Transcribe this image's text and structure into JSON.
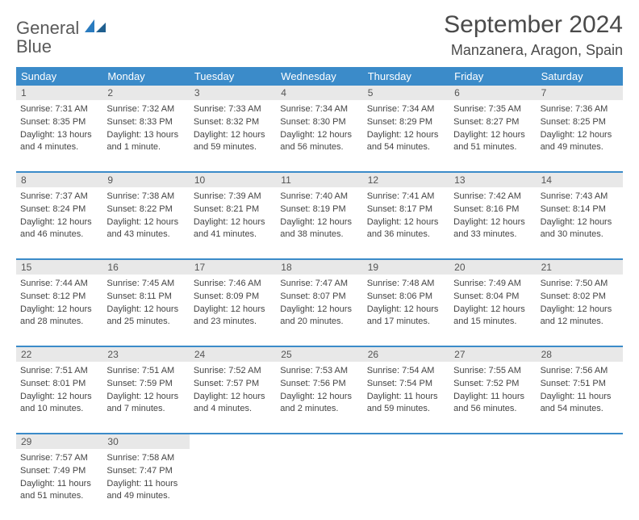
{
  "logo": {
    "text1": "General",
    "text2": "Blue"
  },
  "title": "September 2024",
  "location": "Manzanera, Aragon, Spain",
  "day_names": [
    "Sunday",
    "Monday",
    "Tuesday",
    "Wednesday",
    "Thursday",
    "Friday",
    "Saturday"
  ],
  "colors": {
    "header_bg": "#3b8bc9",
    "daynum_bg": "#e8e8e8",
    "border": "#3b8bc9",
    "text": "#444444"
  },
  "weeks": [
    [
      {
        "n": "1",
        "sr": "7:31 AM",
        "ss": "8:35 PM",
        "dl": "13 hours and 4 minutes."
      },
      {
        "n": "2",
        "sr": "7:32 AM",
        "ss": "8:33 PM",
        "dl": "13 hours and 1 minute."
      },
      {
        "n": "3",
        "sr": "7:33 AM",
        "ss": "8:32 PM",
        "dl": "12 hours and 59 minutes."
      },
      {
        "n": "4",
        "sr": "7:34 AM",
        "ss": "8:30 PM",
        "dl": "12 hours and 56 minutes."
      },
      {
        "n": "5",
        "sr": "7:34 AM",
        "ss": "8:29 PM",
        "dl": "12 hours and 54 minutes."
      },
      {
        "n": "6",
        "sr": "7:35 AM",
        "ss": "8:27 PM",
        "dl": "12 hours and 51 minutes."
      },
      {
        "n": "7",
        "sr": "7:36 AM",
        "ss": "8:25 PM",
        "dl": "12 hours and 49 minutes."
      }
    ],
    [
      {
        "n": "8",
        "sr": "7:37 AM",
        "ss": "8:24 PM",
        "dl": "12 hours and 46 minutes."
      },
      {
        "n": "9",
        "sr": "7:38 AM",
        "ss": "8:22 PM",
        "dl": "12 hours and 43 minutes."
      },
      {
        "n": "10",
        "sr": "7:39 AM",
        "ss": "8:21 PM",
        "dl": "12 hours and 41 minutes."
      },
      {
        "n": "11",
        "sr": "7:40 AM",
        "ss": "8:19 PM",
        "dl": "12 hours and 38 minutes."
      },
      {
        "n": "12",
        "sr": "7:41 AM",
        "ss": "8:17 PM",
        "dl": "12 hours and 36 minutes."
      },
      {
        "n": "13",
        "sr": "7:42 AM",
        "ss": "8:16 PM",
        "dl": "12 hours and 33 minutes."
      },
      {
        "n": "14",
        "sr": "7:43 AM",
        "ss": "8:14 PM",
        "dl": "12 hours and 30 minutes."
      }
    ],
    [
      {
        "n": "15",
        "sr": "7:44 AM",
        "ss": "8:12 PM",
        "dl": "12 hours and 28 minutes."
      },
      {
        "n": "16",
        "sr": "7:45 AM",
        "ss": "8:11 PM",
        "dl": "12 hours and 25 minutes."
      },
      {
        "n": "17",
        "sr": "7:46 AM",
        "ss": "8:09 PM",
        "dl": "12 hours and 23 minutes."
      },
      {
        "n": "18",
        "sr": "7:47 AM",
        "ss": "8:07 PM",
        "dl": "12 hours and 20 minutes."
      },
      {
        "n": "19",
        "sr": "7:48 AM",
        "ss": "8:06 PM",
        "dl": "12 hours and 17 minutes."
      },
      {
        "n": "20",
        "sr": "7:49 AM",
        "ss": "8:04 PM",
        "dl": "12 hours and 15 minutes."
      },
      {
        "n": "21",
        "sr": "7:50 AM",
        "ss": "8:02 PM",
        "dl": "12 hours and 12 minutes."
      }
    ],
    [
      {
        "n": "22",
        "sr": "7:51 AM",
        "ss": "8:01 PM",
        "dl": "12 hours and 10 minutes."
      },
      {
        "n": "23",
        "sr": "7:51 AM",
        "ss": "7:59 PM",
        "dl": "12 hours and 7 minutes."
      },
      {
        "n": "24",
        "sr": "7:52 AM",
        "ss": "7:57 PM",
        "dl": "12 hours and 4 minutes."
      },
      {
        "n": "25",
        "sr": "7:53 AM",
        "ss": "7:56 PM",
        "dl": "12 hours and 2 minutes."
      },
      {
        "n": "26",
        "sr": "7:54 AM",
        "ss": "7:54 PM",
        "dl": "11 hours and 59 minutes."
      },
      {
        "n": "27",
        "sr": "7:55 AM",
        "ss": "7:52 PM",
        "dl": "11 hours and 56 minutes."
      },
      {
        "n": "28",
        "sr": "7:56 AM",
        "ss": "7:51 PM",
        "dl": "11 hours and 54 minutes."
      }
    ],
    [
      {
        "n": "29",
        "sr": "7:57 AM",
        "ss": "7:49 PM",
        "dl": "11 hours and 51 minutes."
      },
      {
        "n": "30",
        "sr": "7:58 AM",
        "ss": "7:47 PM",
        "dl": "11 hours and 49 minutes."
      },
      null,
      null,
      null,
      null,
      null
    ]
  ],
  "labels": {
    "sunrise": "Sunrise:",
    "sunset": "Sunset:",
    "daylight": "Daylight:"
  }
}
